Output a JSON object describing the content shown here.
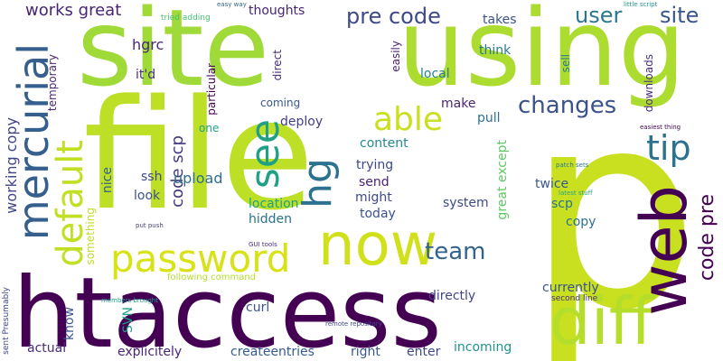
{
  "words": [
    {
      "text": "p",
      "color": "#c8e020"
    },
    {
      "text": "file",
      "color": "#bddf26"
    },
    {
      "text": "site",
      "color": "#a0da39"
    },
    {
      "text": "using",
      "color": "#addc30"
    },
    {
      "text": "htaccess",
      "color": "#440154"
    },
    {
      "text": "now",
      "color": "#d0e11c"
    },
    {
      "text": "diff",
      "color": "#b5de2b"
    },
    {
      "text": "web",
      "color": "#440154"
    },
    {
      "text": "password",
      "color": "#d8e219"
    },
    {
      "text": "mercurial",
      "color": "#355f8d"
    },
    {
      "text": "default",
      "color": "#c2df23"
    },
    {
      "text": "hg",
      "color": "#2c728e"
    },
    {
      "text": "see",
      "color": "#1fa187"
    },
    {
      "text": "able",
      "color": "#c8e020"
    },
    {
      "text": "tip",
      "color": "#2c728e"
    },
    {
      "text": "changes",
      "color": "#3b528b"
    },
    {
      "text": "team",
      "color": "#33638d"
    },
    {
      "text": "pre code",
      "color": "#3e4989"
    },
    {
      "text": "user",
      "color": "#2a788e"
    },
    {
      "text": "site",
      "color": "#39568c"
    },
    {
      "text": "code pre",
      "color": "#440154"
    },
    {
      "text": "works great",
      "color": "#482475"
    },
    {
      "text": "working copy",
      "color": "#414487"
    },
    {
      "text": "code scp",
      "color": "#443983"
    },
    {
      "text": "upload",
      "color": "#2e6e8e"
    },
    {
      "text": "hgrc",
      "color": "#482878"
    },
    {
      "text": "it'd",
      "color": "#472c7a"
    },
    {
      "text": "ssh",
      "color": "#3e4989"
    },
    {
      "text": "look",
      "color": "#3b528b"
    },
    {
      "text": "nice",
      "color": "#34618d"
    },
    {
      "text": "thoughts",
      "color": "#482475"
    },
    {
      "text": "takes",
      "color": "#3b528b"
    },
    {
      "text": "think",
      "color": "#2a788e"
    },
    {
      "text": "local",
      "color": "#27808e"
    },
    {
      "text": "make",
      "color": "#482475"
    },
    {
      "text": "pull",
      "color": "#2c728e"
    },
    {
      "text": "deploy",
      "color": "#433e85"
    },
    {
      "text": "content",
      "color": "#23898e"
    },
    {
      "text": "trying",
      "color": "#3e4989"
    },
    {
      "text": "send",
      "color": "#482475"
    },
    {
      "text": "might",
      "color": "#3e4989"
    },
    {
      "text": "today",
      "color": "#3b528b"
    },
    {
      "text": "system",
      "color": "#3e4989"
    },
    {
      "text": "location",
      "color": "#1fa187"
    },
    {
      "text": "hidden",
      "color": "#2c728e"
    },
    {
      "text": "great except",
      "color": "#5ec962"
    },
    {
      "text": "twice",
      "color": "#38588c"
    },
    {
      "text": "scp",
      "color": "#2c728e"
    },
    {
      "text": "copy",
      "color": "#2d708e"
    },
    {
      "text": "currently",
      "color": "#3b528b"
    },
    {
      "text": "directly",
      "color": "#414487"
    },
    {
      "text": "curl",
      "color": "#3b528b"
    },
    {
      "text": "incoming",
      "color": "#21918c"
    },
    {
      "text": "createentries",
      "color": "#365c8d"
    },
    {
      "text": "right",
      "color": "#38588c"
    },
    {
      "text": "enter",
      "color": "#404688"
    },
    {
      "text": "explicitely",
      "color": "#482475"
    },
    {
      "text": "actual",
      "color": "#472d7b"
    },
    {
      "text": "know",
      "color": "#39568c"
    },
    {
      "text": "SVN",
      "color": "#1f9e89"
    },
    {
      "text": "something",
      "color": "#bddf26"
    },
    {
      "text": "temporary",
      "color": "#482475"
    },
    {
      "text": "particular",
      "color": "#440154"
    },
    {
      "text": "direct",
      "color": "#472c7a"
    },
    {
      "text": "coming",
      "color": "#38588c"
    },
    {
      "text": "one",
      "color": "#1fa187"
    },
    {
      "text": "easily",
      "color": "#481f70"
    },
    {
      "text": "sell",
      "color": "#2a788e"
    },
    {
      "text": "downloads",
      "color": "#472c7a"
    },
    {
      "text": "tried adding",
      "color": "#44bf70"
    },
    {
      "text": "easy way",
      "color": "#31688e"
    },
    {
      "text": "little script",
      "color": "#21918c"
    },
    {
      "text": "easiest thing",
      "color": "#440154"
    },
    {
      "text": "patch sets",
      "color": "#2a788e"
    },
    {
      "text": "latest stuff",
      "color": "#22a884"
    },
    {
      "text": "put push",
      "color": "#433e85"
    },
    {
      "text": "GUI tools",
      "color": "#472c7a"
    },
    {
      "text": "following command",
      "color": "#b5de2b"
    },
    {
      "text": "members brought",
      "color": "#1f9e89"
    },
    {
      "text": "sent Presumably",
      "color": "#414487"
    },
    {
      "text": "second line",
      "color": "#472c7a"
    },
    {
      "text": "remote repository",
      "color": "#3e4989"
    }
  ]
}
